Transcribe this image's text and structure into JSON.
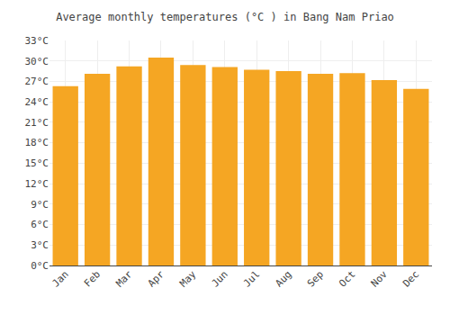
{
  "chart_data": {
    "type": "bar",
    "title": "Average monthly temperatures (°C ) in Bang Nam Priao",
    "categories": [
      "Jan",
      "Feb",
      "Mar",
      "Apr",
      "May",
      "Jun",
      "Jul",
      "Aug",
      "Sep",
      "Oct",
      "Nov",
      "Dec"
    ],
    "values": [
      26.3,
      28.1,
      29.2,
      30.5,
      29.4,
      29.1,
      28.7,
      28.5,
      28.1,
      28.2,
      27.2,
      25.9
    ],
    "color": "#F5A623",
    "ylim": [
      0,
      33
    ],
    "yticks": [
      {
        "value": 0,
        "label": "0°C"
      },
      {
        "value": 3,
        "label": "3°C"
      },
      {
        "value": 6,
        "label": "6°C"
      },
      {
        "value": 9,
        "label": "9°C"
      },
      {
        "value": 12,
        "label": "12°C"
      },
      {
        "value": 15,
        "label": "15°C"
      },
      {
        "value": 18,
        "label": "18°C"
      },
      {
        "value": 21,
        "label": "21°C"
      },
      {
        "value": 24,
        "label": "24°C"
      },
      {
        "value": 27,
        "label": "27°C"
      },
      {
        "value": 30,
        "label": "30°C"
      },
      {
        "value": 33,
        "label": "33°C"
      }
    ],
    "grid": true
  }
}
